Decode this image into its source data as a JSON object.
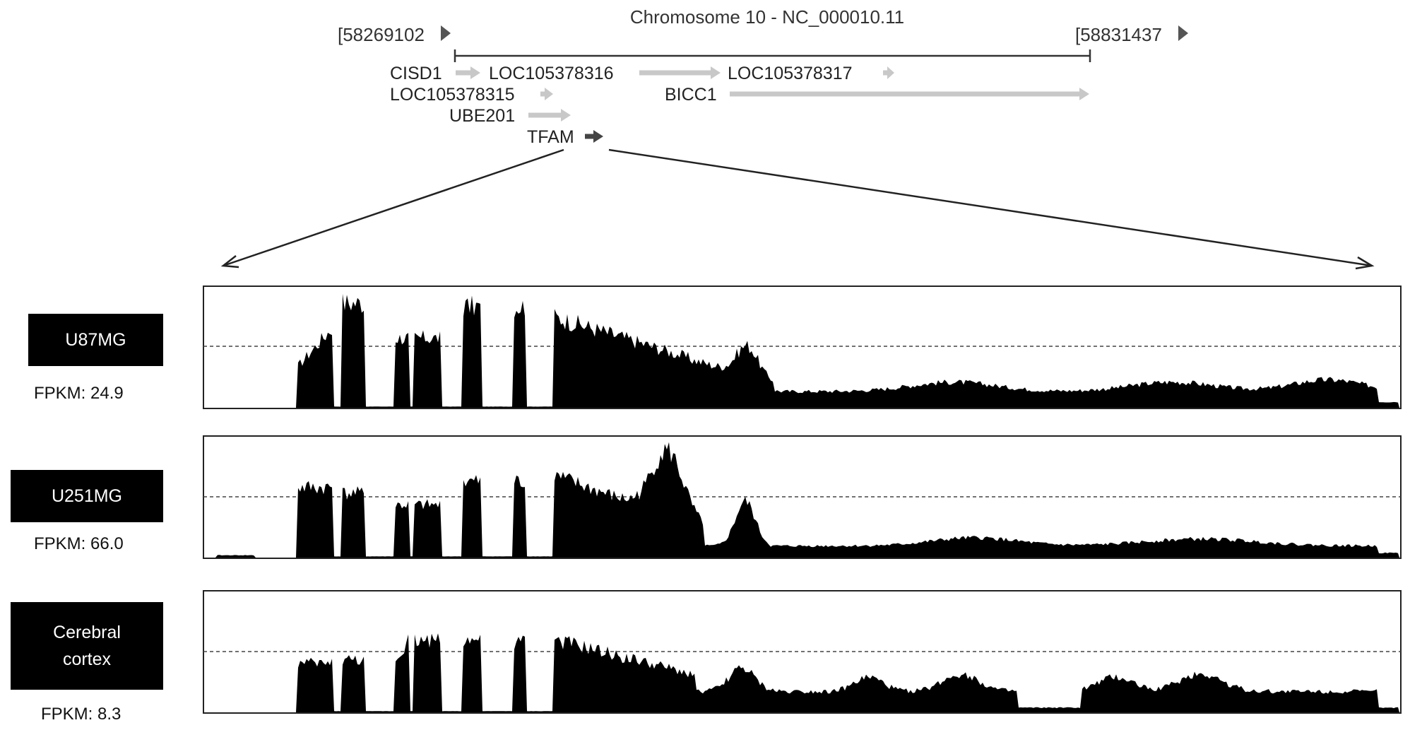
{
  "title": "Chromosome 10 - NC_000010.11",
  "range": {
    "start": "[58269102",
    "end": "[58831437"
  },
  "genes": [
    {
      "label": "CISD1",
      "shade": "light"
    },
    {
      "label": "LOC105378316",
      "shade": "light"
    },
    {
      "label": "LOC105378317",
      "shade": "light"
    },
    {
      "label": "LOC105378315",
      "shade": "light"
    },
    {
      "label": "BICC1",
      "shade": "light"
    },
    {
      "label": "UBE201",
      "shade": "light"
    },
    {
      "label": "TFAM",
      "shade": "dark"
    }
  ],
  "samples": [
    {
      "name": "U87MG",
      "fpkm_label": "FPKM: 24.9",
      "fpkm": 24.9
    },
    {
      "name": "U251MG",
      "fpkm_label": "FPKM: 66.0",
      "fpkm": 66.0
    },
    {
      "name": "Cerebral\ncortex",
      "fpkm_label": "FPKM: 8.3",
      "fpkm": 8.3
    }
  ],
  "colors": {
    "coverage": "#000000",
    "gene_light": "#c8c8c8",
    "gene_dark": "#444444",
    "line": "#333333"
  }
}
